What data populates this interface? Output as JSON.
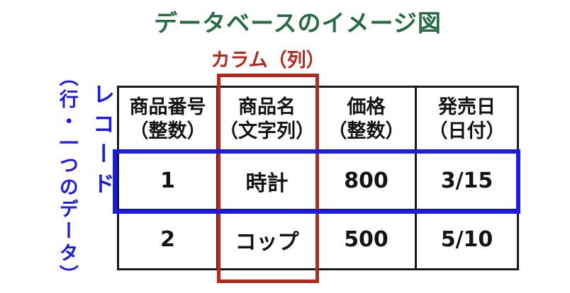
{
  "title": "データベースのイメージ図",
  "annotations": {
    "column_label": "カラム（列）",
    "record_label": "レコード",
    "record_label_detail": "（行・一つのデータ）"
  },
  "colors": {
    "title_green": "#266b43",
    "annotation_red": "#b3291e",
    "annotation_blue": "#1b1ae8",
    "table_grid_black": "#1a1a1a",
    "background": "#ffffff"
  },
  "table": {
    "headers": [
      {
        "name": "商品番号",
        "type": "（整数）"
      },
      {
        "name": "商品名",
        "type": "（文字列）"
      },
      {
        "name": "価格",
        "type": "（整数）"
      },
      {
        "name": "発売日",
        "type": "（日付）"
      }
    ],
    "rows": [
      [
        "1",
        "時計",
        "800",
        "3/15"
      ],
      [
        "2",
        "コップ",
        "500",
        "5/10"
      ]
    ]
  }
}
